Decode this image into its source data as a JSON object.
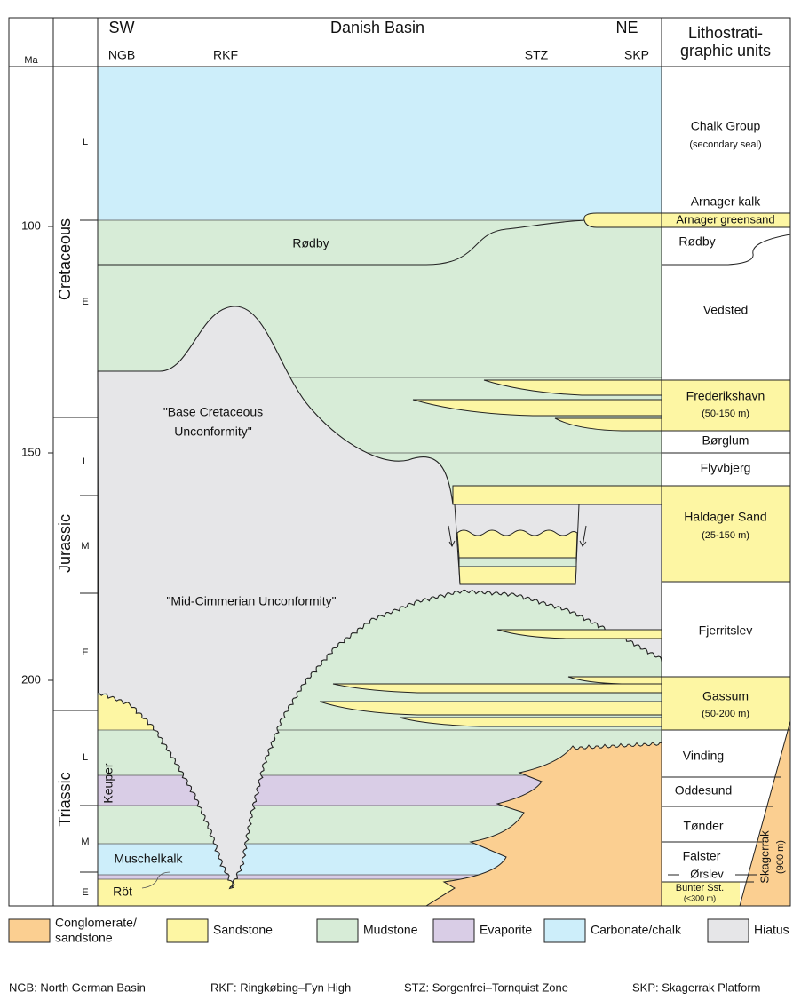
{
  "header": {
    "ma": "Ma",
    "sw": "SW",
    "title": "Danish Basin",
    "ne": "NE",
    "locations": [
      "NGB",
      "RKF",
      "STZ",
      "SKP"
    ],
    "litho_title": [
      "Lithostrati-",
      "graphic units"
    ]
  },
  "time_scale": {
    "ticks": [
      100,
      150,
      200
    ]
  },
  "periods": [
    {
      "name": "Cretaceous",
      "epochs": [
        "L",
        "E"
      ]
    },
    {
      "name": "Jurassic",
      "epochs": [
        "L",
        "M",
        "E"
      ]
    },
    {
      "name": "Triassic",
      "epochs": [
        "L",
        "M",
        "E"
      ]
    }
  ],
  "basin_labels": {
    "rodby": "Rødby",
    "base_cretaceous": [
      "\"Base Cretaceous",
      "Unconformity\""
    ],
    "mid_cimmerian": "\"Mid-Cimmerian Unconformity\"",
    "keuper": "Keuper",
    "muschelkalk": "Muschelkalk",
    "rot": "Röt"
  },
  "litho_units": [
    {
      "name": "Chalk Group",
      "note": "(secondary seal)"
    },
    {
      "name": "Arnager kalk"
    },
    {
      "name": "Arnager greensand"
    },
    {
      "name": "Rødby"
    },
    {
      "name": "Vedsted"
    },
    {
      "name": "Frederikshavn",
      "note": "(50-150 m)"
    },
    {
      "name": "Børglum"
    },
    {
      "name": "Flyvbjerg"
    },
    {
      "name": "Haldager Sand",
      "note": "(25-150 m)"
    },
    {
      "name": "Fjerritslev"
    },
    {
      "name": "Gassum",
      "note": "(50-200 m)"
    },
    {
      "name": "Vinding"
    },
    {
      "name": "Oddesund"
    },
    {
      "name": "Tønder"
    },
    {
      "name": "Falster"
    },
    {
      "name": "Ørslev"
    },
    {
      "name": "Bunter Sst.",
      "note": "(<300 m)"
    },
    {
      "name": "Skagerrak",
      "note": "(900 m)"
    }
  ],
  "legend": [
    {
      "label": [
        "Conglomerate/",
        "sandstone"
      ]
    },
    {
      "label": [
        "Sandstone"
      ]
    },
    {
      "label": [
        "Mudstone"
      ]
    },
    {
      "label": [
        "Evaporite"
      ]
    },
    {
      "label": [
        "Carbonate/chalk"
      ]
    },
    {
      "label": [
        "Hiatus"
      ]
    }
  ],
  "abbreviations": [
    "NGB: North German Basin",
    "RKF: Ringkøbing–Fyn High",
    "STZ: Sorgenfrei–Tornquist Zone",
    "SKP: Skagerrak Platform"
  ]
}
